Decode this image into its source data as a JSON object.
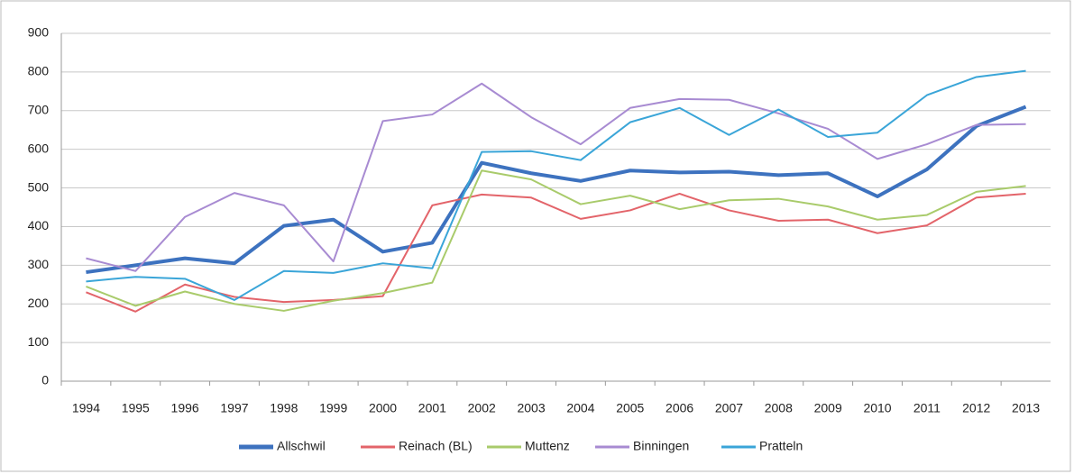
{
  "chart_data": {
    "type": "line",
    "categories": [
      "1994",
      "1995",
      "1996",
      "1997",
      "1998",
      "1999",
      "2000",
      "2001",
      "2002",
      "2003",
      "2004",
      "2005",
      "2006",
      "2007",
      "2008",
      "2009",
      "2010",
      "2011",
      "2012",
      "2013"
    ],
    "series": [
      {
        "name": "Allschwil",
        "color": "#3d72bf",
        "values": [
          282,
          300,
          318,
          305,
          402,
          418,
          335,
          358,
          565,
          538,
          518,
          545,
          540,
          542,
          533,
          538,
          478,
          548,
          660,
          710
        ]
      },
      {
        "name": "Reinach (BL)",
        "color": "#e3646a",
        "values": [
          230,
          180,
          250,
          218,
          205,
          210,
          220,
          455,
          483,
          475,
          420,
          442,
          485,
          442,
          415,
          418,
          383,
          403,
          475,
          485
        ]
      },
      {
        "name": "Muttenz",
        "color": "#a9cb6b",
        "values": [
          245,
          195,
          232,
          200,
          182,
          208,
          228,
          255,
          545,
          522,
          458,
          480,
          445,
          468,
          472,
          452,
          418,
          430,
          490,
          505
        ]
      },
      {
        "name": "Binningen",
        "color": "#a88bd2",
        "values": [
          318,
          285,
          425,
          487,
          455,
          310,
          673,
          690,
          770,
          683,
          613,
          707,
          730,
          728,
          693,
          653,
          575,
          613,
          663,
          665
        ]
      },
      {
        "name": "Pratteln",
        "color": "#3aa5d8",
        "values": [
          258,
          270,
          265,
          210,
          285,
          280,
          305,
          292,
          593,
          595,
          572,
          670,
          707,
          637,
          703,
          632,
          643,
          740,
          787,
          803
        ]
      }
    ],
    "ylim": [
      0,
      900
    ],
    "yticks": [
      0,
      100,
      200,
      300,
      400,
      500,
      600,
      700,
      800,
      900
    ],
    "grid": true,
    "legend": "bottom"
  }
}
